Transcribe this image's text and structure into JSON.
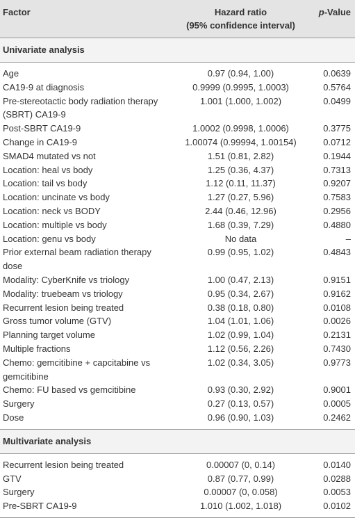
{
  "header": {
    "factor": "Factor",
    "hazard_ratio": [
      "Hazard ratio",
      "(95% confidence interval)"
    ],
    "p_value": "p-Value"
  },
  "sections": [
    {
      "title": "Univariate analysis",
      "rows": [
        [
          "Age",
          "0.97 (0.94, 1.00)",
          "0.0639"
        ],
        [
          "CA19-9 at diagnosis",
          "0.9999 (0.9995, 1.0003)",
          "0.5764"
        ],
        [
          "Pre-stereotactic body radiation therapy (SBRT) CA19-9",
          "1.001 (1.000, 1.002)",
          "0.0499"
        ],
        [
          "Post-SBRT CA19-9",
          "1.0002 (0.9998, 1.0006)",
          "0.3775"
        ],
        [
          "Change in CA19-9",
          "1.00074 (0.99994, 1.00154)",
          "0.0712"
        ],
        [
          "SMAD4 mutated vs not",
          "1.51 (0.81, 2.82)",
          "0.1944"
        ],
        [
          "Location: heal vs body",
          "1.25 (0.36, 4.37)",
          "0.7313"
        ],
        [
          "Location: tail vs body",
          "1.12 (0.11, 11.37)",
          "0.9207"
        ],
        [
          "Location: uncinate vs body",
          "1.27 (0.27, 5.96)",
          "0.7583"
        ],
        [
          "Location: neck vs BODY",
          "2.44 (0.46, 12.96)",
          "0.2956"
        ],
        [
          "Location: multiple vs body",
          "1.68 (0.39, 7.29)",
          "0.4880"
        ],
        [
          "Location: genu vs body",
          "No data",
          "–"
        ],
        [
          "Prior external beam radiation therapy dose",
          "0.99 (0.95, 1.02)",
          "0.4843"
        ],
        [
          "Modality: CyberKnife vs triology",
          "1.00 (0.47, 2.13)",
          "0.9151"
        ],
        [
          "Modality: truebeam vs triology",
          "0.95 (0.34, 2.67)",
          "0.9162"
        ],
        [
          "Recurrent lesion being treated",
          "0.38 (0.18, 0.80)",
          "0.0108"
        ],
        [
          "Gross tumor volume (GTV)",
          "1.04 (1.01, 1.06)",
          "0.0026"
        ],
        [
          "Planning target volume",
          "1.02 (0.99, 1.04)",
          "0.2131"
        ],
        [
          "Multiple fractions",
          "1.12 (0.56, 2.26)",
          "0.7430"
        ],
        [
          "Chemo: gemcitibine + capcitabine vs gemcitibine",
          "1.02 (0.34, 3.05)",
          "0.9773"
        ],
        [
          "Chemo: FU based vs gemcitibine",
          "0.93 (0.30, 2.92)",
          "0.9001"
        ],
        [
          "Surgery",
          "0.27 (0.13, 0.57)",
          "0.0005"
        ],
        [
          "Dose",
          "0.96 (0.90, 1.03)",
          "0.2462"
        ]
      ]
    },
    {
      "title": "Multivariate analysis",
      "rows": [
        [
          "Recurrent lesion being treated",
          "0.00007 (0, 0.14)",
          "0.0140"
        ],
        [
          "GTV",
          "0.87 (0.77, 0.99)",
          "0.0288"
        ],
        [
          "Surgery",
          "0.00007 (0, 0.058)",
          "0.0053"
        ],
        [
          "Pre-SBRT CA19-9",
          "1.010 (1.002, 1.018)",
          "0.0102"
        ]
      ]
    }
  ]
}
